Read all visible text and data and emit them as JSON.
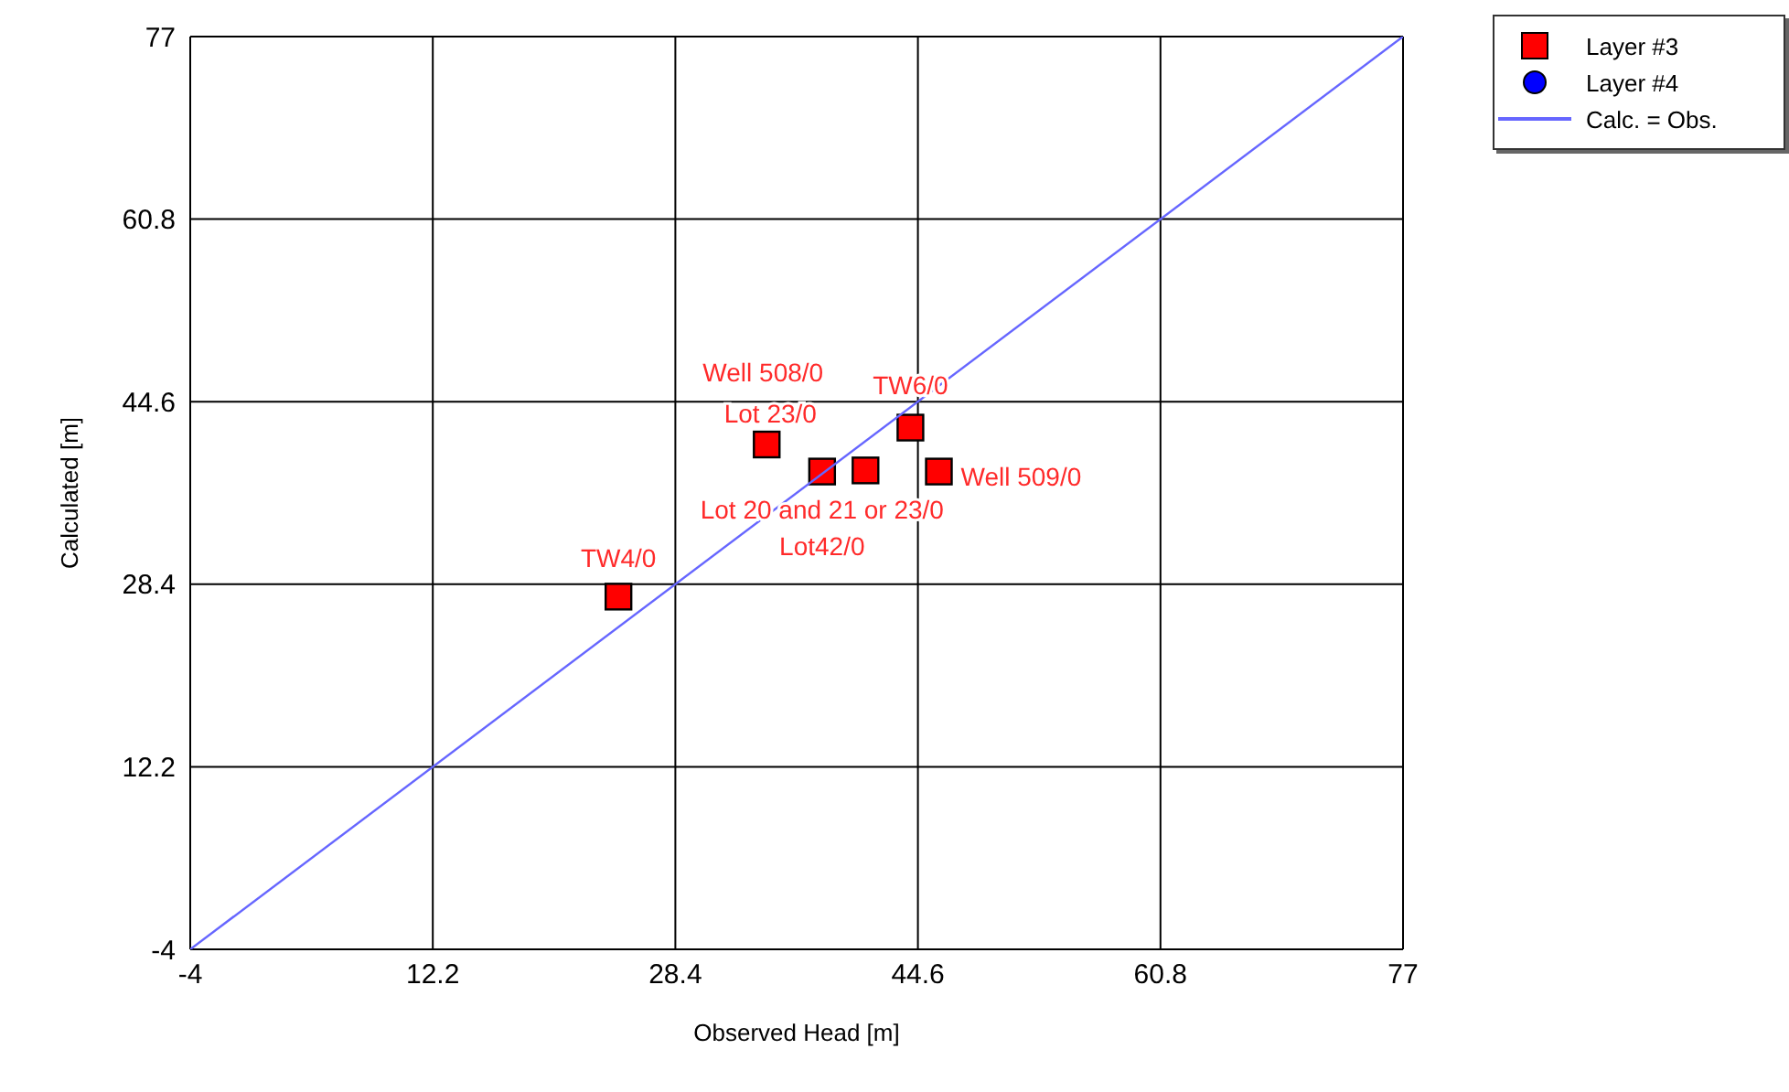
{
  "chart_data": {
    "type": "scatter",
    "xlabel": "Observed Head [m]",
    "ylabel": "Calculated [m]",
    "xlim": [
      -4,
      77
    ],
    "ylim": [
      -4,
      77
    ],
    "xticks": [
      -4,
      12.2,
      28.4,
      44.6,
      60.8,
      77
    ],
    "yticks": [
      -4,
      12.2,
      28.4,
      44.6,
      60.8,
      77
    ],
    "grid": true,
    "legend": "top right",
    "series": [
      {
        "name": "Layer #3",
        "color": "#ff0000",
        "marker": "square",
        "x": [
          24.6,
          34.5,
          38.2,
          41.1,
          44.1,
          46.0
        ],
        "values": [
          27.3,
          40.8,
          38.4,
          38.5,
          42.3,
          38.4
        ]
      },
      {
        "name": "Layer #4",
        "color": "#0000ff",
        "marker": "circle"
      },
      {
        "name": "Calc. = Obs.",
        "type": "line",
        "color": "#6666ff",
        "marker": "none",
        "x": [
          -4,
          77
        ],
        "values": [
          -4,
          77
        ]
      }
    ],
    "annotations": [
      {
        "text": "TW4/0",
        "x": 24.6,
        "y": 27.3
      },
      {
        "text": "Well 508/0",
        "x": 34.5,
        "y": 40.8
      },
      {
        "text": "Lot 23/0",
        "x": 41.1,
        "y": 38.5
      },
      {
        "text": "TW6/0",
        "x": 44.1,
        "y": 42.3
      },
      {
        "text": "Well 509/0",
        "x": 46.0,
        "y": 38.4
      },
      {
        "text": "Lot 20 and 21 or 23/0",
        "x": 38.2,
        "y": 38.4
      },
      {
        "text": "Lot42/0",
        "x": 38.2,
        "y": 38.4
      }
    ]
  }
}
